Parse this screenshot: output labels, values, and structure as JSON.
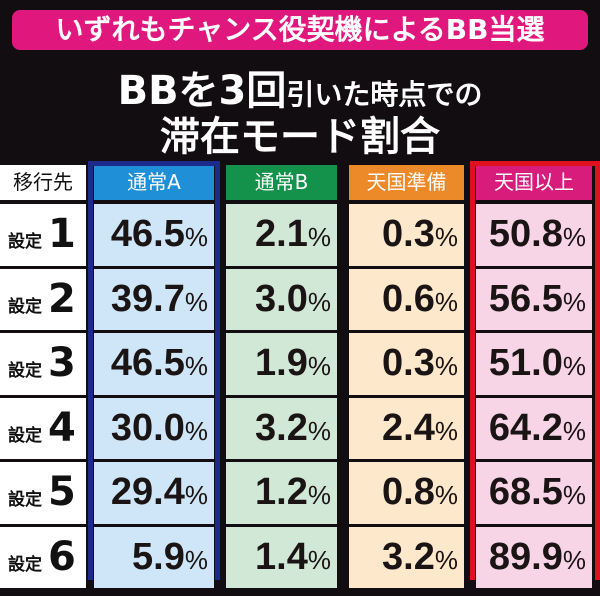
{
  "banner": "いずれもチャンス役契機によるBB当選",
  "title": {
    "line1_big": "BBを3回",
    "line1_small": "引いた時点での",
    "line2": "滞在モード割合"
  },
  "table": {
    "corner_label": "移行先",
    "setting_prefix": "設定",
    "columns": [
      {
        "label": "通常A",
        "header_color": "#1f8fd8",
        "cell_color": "#cfe6f8"
      },
      {
        "label": "通常B",
        "header_color": "#14914a",
        "cell_color": "#d2e8d6"
      },
      {
        "label": "天国準備",
        "header_color": "#ec8a2a",
        "cell_color": "#fde8cc"
      },
      {
        "label": "天国以上",
        "header_color": "#d81c7c",
        "cell_color": "#f7d4e6"
      }
    ],
    "rows": [
      {
        "setting": "1",
        "values": [
          "46.5",
          "2.1",
          "0.3",
          "50.8"
        ]
      },
      {
        "setting": "2",
        "values": [
          "39.7",
          "3.0",
          "0.6",
          "56.5"
        ]
      },
      {
        "setting": "3",
        "values": [
          "46.5",
          "1.9",
          "0.3",
          "51.0"
        ]
      },
      {
        "setting": "4",
        "values": [
          "30.0",
          "3.2",
          "2.4",
          "64.2"
        ]
      },
      {
        "setting": "5",
        "values": [
          "29.4",
          "1.2",
          "0.8",
          "68.5"
        ]
      },
      {
        "setting": "6",
        "values": [
          "5.9",
          "1.4",
          "3.2",
          "89.9"
        ]
      }
    ],
    "unit": "%",
    "highlight": {
      "tsujo_a_border": "#1c2a8c",
      "tengoku_border": "#e0101e"
    }
  }
}
